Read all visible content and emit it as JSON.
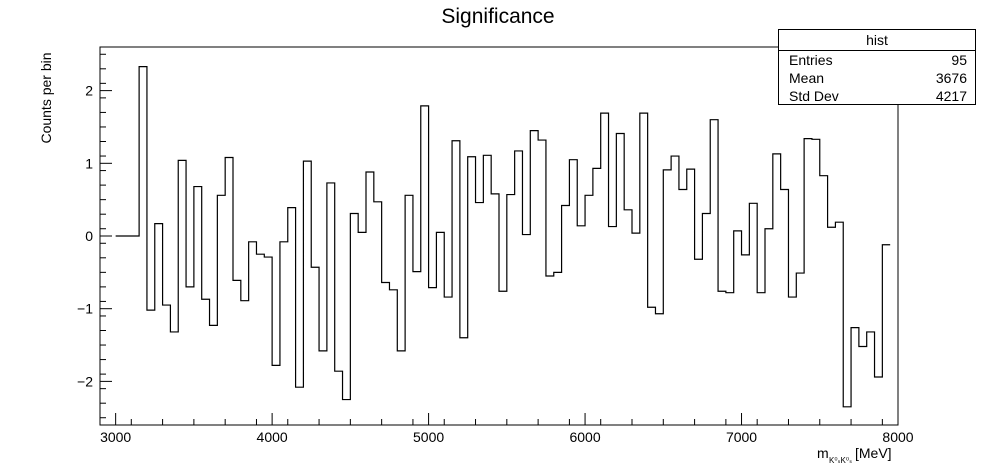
{
  "chart_data": {
    "type": "histogram",
    "title": "Significance",
    "ylabel": "Counts per bin",
    "xlabel_prefix": "m",
    "xlabel_sub": "K⁰ₛK⁰ₛ",
    "xlabel_unit": "[MeV]",
    "xlim": [
      2900,
      8000
    ],
    "ylim": [
      -2.6,
      2.6
    ],
    "xticks": [
      3000,
      4000,
      5000,
      6000,
      7000,
      8000
    ],
    "xtick_labels": [
      "3000",
      "4000",
      "5000",
      "6000",
      "7000",
      "8000"
    ],
    "yticks": [
      -2,
      -1,
      0,
      1,
      2
    ],
    "ytick_labels": [
      "−2",
      "−1",
      "0",
      "1",
      "2"
    ],
    "bin_start": 3150,
    "bin_width": 50,
    "baseline_from": 3000,
    "values": [
      2.33,
      -1.02,
      0.17,
      -0.95,
      -1.32,
      1.04,
      -0.7,
      0.68,
      -0.87,
      -1.23,
      0.56,
      1.08,
      -0.61,
      -0.89,
      -0.08,
      -0.25,
      -0.29,
      -1.78,
      -0.08,
      0.39,
      -2.08,
      1.03,
      -0.43,
      -1.58,
      0.73,
      -1.86,
      -2.25,
      0.31,
      0.05,
      0.88,
      0.47,
      -0.64,
      -0.74,
      -1.58,
      0.56,
      -0.49,
      1.79,
      -0.71,
      0.05,
      -0.84,
      1.31,
      -1.4,
      1.09,
      0.46,
      1.11,
      0.58,
      -0.76,
      0.57,
      1.17,
      0.02,
      1.45,
      1.32,
      -0.55,
      -0.5,
      0.42,
      1.05,
      0.14,
      0.56,
      0.93,
      1.69,
      0.13,
      1.41,
      0.36,
      0.04,
      1.69,
      -0.98,
      -1.07,
      0.91,
      1.1,
      0.64,
      0.92,
      -0.32,
      0.31,
      1.6,
      -0.76,
      -0.78,
      0.07,
      -0.26,
      0.45,
      -0.78,
      0.1,
      1.13,
      0.64,
      -0.84,
      -0.51,
      1.34,
      1.33,
      0.83,
      0.12,
      0.19,
      -2.35,
      -1.26,
      -1.52,
      -1.32,
      -1.94,
      -0.12
    ]
  },
  "stats": {
    "name": "hist",
    "rows": [
      {
        "label": "Entries",
        "value": "95"
      },
      {
        "label": "Mean",
        "value": "3676"
      },
      {
        "label": "Std Dev",
        "value": "4217"
      }
    ]
  }
}
